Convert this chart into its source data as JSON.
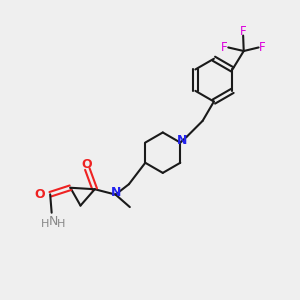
{
  "bg_color": "#efefef",
  "bond_color": "#1a1a1a",
  "N_color": "#2222ee",
  "O_color": "#ee2222",
  "F_color": "#dd00dd",
  "NH_color": "#888888",
  "lw": 1.5,
  "figsize": [
    3.0,
    3.0
  ],
  "dpi": 100,
  "xlim": [
    0,
    10
  ],
  "ylim": [
    0,
    10
  ]
}
